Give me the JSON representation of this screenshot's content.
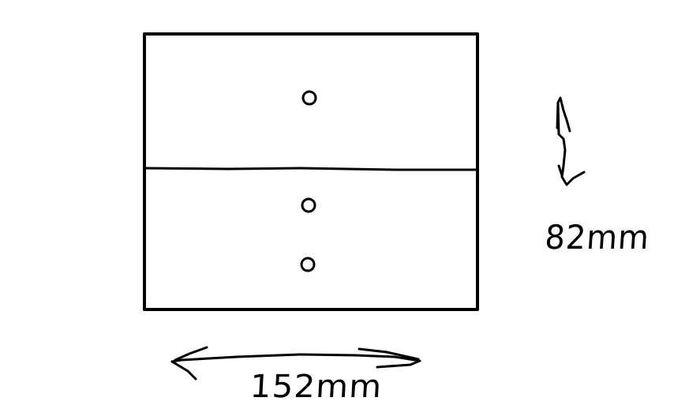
{
  "diagram": {
    "height_label": "82mm",
    "width_label": "152mm",
    "ink_color": "#000000",
    "background_color": "#ffffff"
  }
}
